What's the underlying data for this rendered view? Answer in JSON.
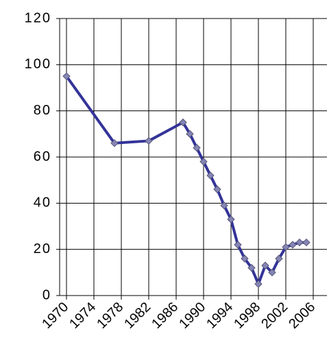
{
  "chart_data": {
    "type": "line",
    "x": [
      1970,
      1977,
      1982,
      1987,
      1988,
      1989,
      1990,
      1991,
      1992,
      1993,
      1994,
      1995,
      1996,
      1997,
      1998,
      1999,
      2000,
      2001,
      2002,
      2003,
      2004,
      2005
    ],
    "values": [
      95,
      66,
      67,
      75,
      70,
      64,
      58,
      52,
      46,
      39,
      33,
      22,
      16,
      12,
      5,
      13,
      10,
      16,
      21,
      22,
      23,
      23
    ],
    "color": "#333399",
    "marker_color": "#8585b5",
    "xlim": [
      1969,
      2008
    ],
    "xticks": [
      1970,
      1974,
      1978,
      1982,
      1986,
      1990,
      1994,
      1998,
      2002,
      2006
    ],
    "ylim": [
      0,
      120
    ],
    "yticks": [
      0,
      20,
      40,
      60,
      80,
      100,
      120
    ],
    "grid": true
  }
}
